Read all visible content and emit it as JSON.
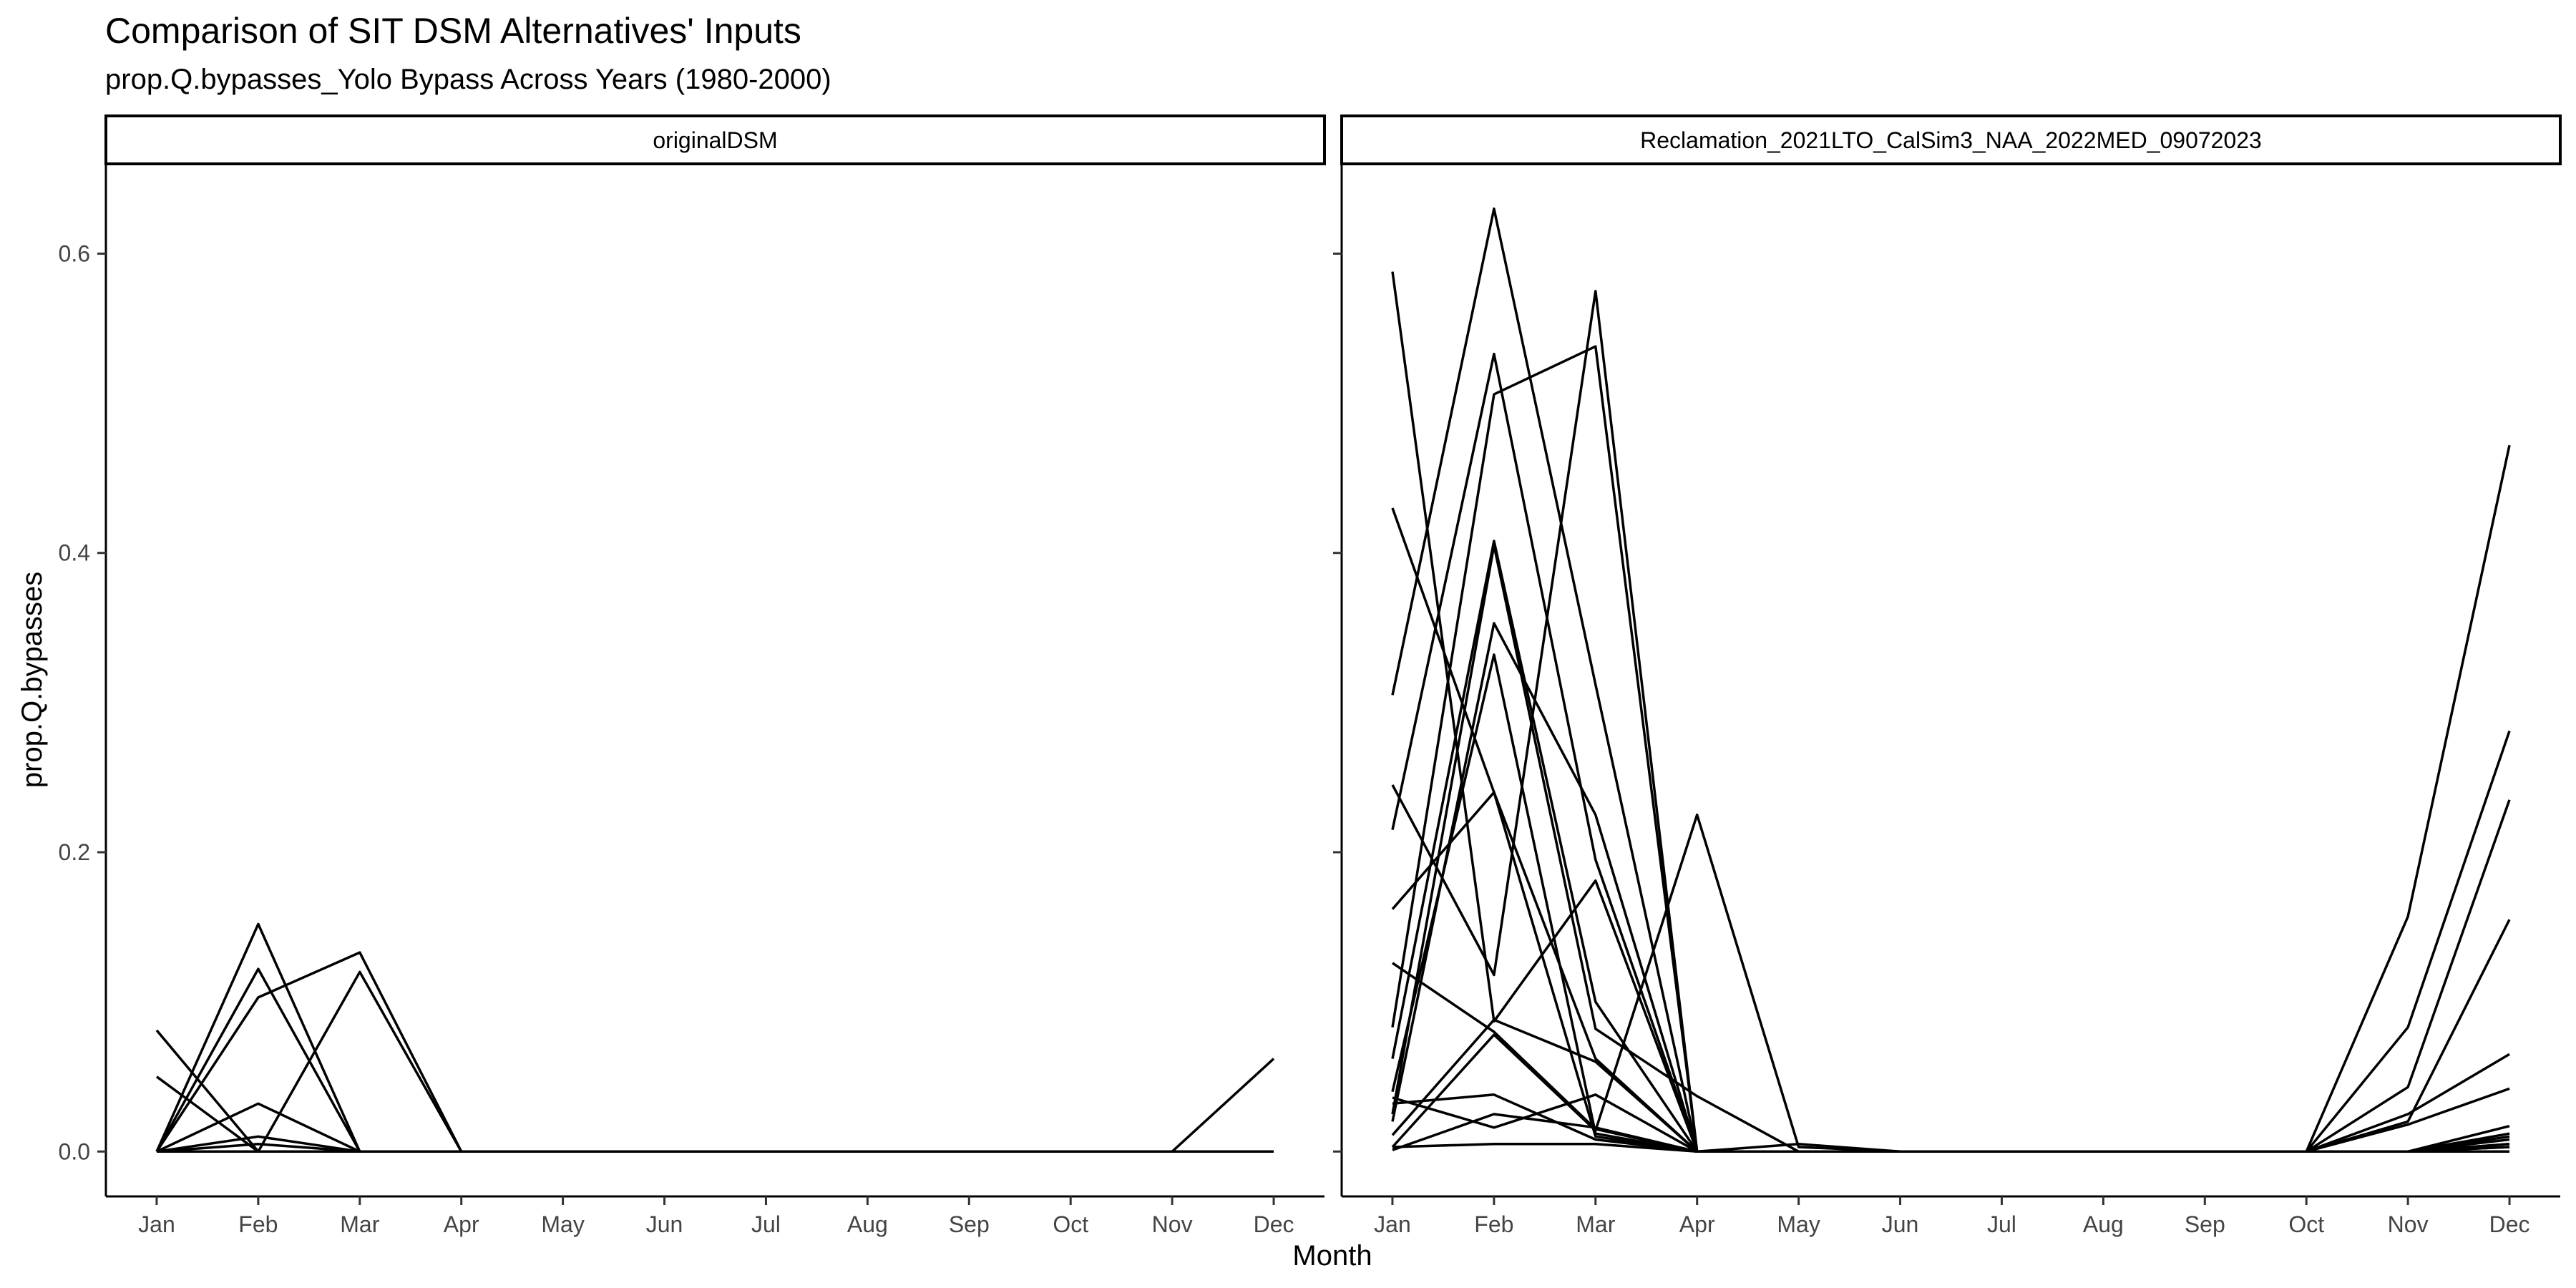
{
  "chart_data": {
    "type": "line",
    "title": "Comparison of SIT DSM Alternatives' Inputs",
    "subtitle": "prop.Q.bypasses_Yolo Bypass Across Years (1980-2000)",
    "xlabel": "Month",
    "ylabel": "prop.Q.bypasses",
    "x": [
      "Jan",
      "Feb",
      "Mar",
      "Apr",
      "May",
      "Jun",
      "Jul",
      "Aug",
      "Sep",
      "Oct",
      "Nov",
      "Dec"
    ],
    "ylim": [
      -0.03,
      0.66
    ],
    "yticks": [
      0.0,
      0.2,
      0.4,
      0.6
    ],
    "ytick_labels": [
      "0.0",
      "0.2",
      "0.4",
      "0.6"
    ],
    "grid": false,
    "legend": "none",
    "line_color": "#000000",
    "facets": [
      {
        "label": "originalDSM",
        "series": [
          {
            "values": [
              0.081,
              0,
              0,
              0,
              0,
              0,
              0,
              0,
              0,
              0,
              0,
              0
            ]
          },
          {
            "values": [
              0.05,
              0,
              0,
              0,
              0,
              0,
              0,
              0,
              0,
              0,
              0,
              0
            ]
          },
          {
            "values": [
              0,
              0.152,
              0,
              0,
              0,
              0,
              0,
              0,
              0,
              0,
              0,
              0
            ]
          },
          {
            "values": [
              0,
              0.122,
              0,
              0,
              0,
              0,
              0,
              0,
              0,
              0,
              0,
              0
            ]
          },
          {
            "values": [
              0,
              0.103,
              0.133,
              0,
              0,
              0,
              0,
              0,
              0,
              0,
              0,
              0
            ]
          },
          {
            "values": [
              0,
              0,
              0.12,
              0,
              0,
              0,
              0,
              0,
              0,
              0,
              0,
              0
            ]
          },
          {
            "values": [
              0,
              0.032,
              0,
              0,
              0,
              0,
              0,
              0,
              0,
              0,
              0,
              0
            ]
          },
          {
            "values": [
              0,
              0.01,
              0,
              0,
              0,
              0,
              0,
              0,
              0,
              0,
              0,
              0
            ]
          },
          {
            "values": [
              0,
              0.005,
              0,
              0,
              0,
              0,
              0,
              0,
              0,
              0,
              0,
              0
            ]
          },
          {
            "values": [
              0,
              0,
              0,
              0,
              0,
              0,
              0,
              0,
              0,
              0,
              0,
              0.062
            ]
          }
        ]
      },
      {
        "label": "Reclamation_2021LTO_CalSim3_NAA_2022MED_09072023",
        "series": [
          {
            "values": [
              0.588,
              0.087,
              0.181,
              0,
              0,
              0,
              0,
              0,
              0,
              0,
              0,
              0
            ]
          },
          {
            "values": [
              0.43,
              0.24,
              0.062,
              0,
              0,
              0,
              0,
              0,
              0,
              0,
              0,
              0
            ]
          },
          {
            "values": [
              0.305,
              0.63,
              0.312,
              0,
              0,
              0,
              0,
              0,
              0,
              0,
              0.157,
              0.472
            ]
          },
          {
            "values": [
              0.245,
              0.118,
              0.575,
              0,
              0,
              0,
              0,
              0,
              0,
              0,
              0.083,
              0.281
            ]
          },
          {
            "values": [
              0.215,
              0.533,
              0.195,
              0,
              0,
              0,
              0,
              0,
              0,
              0,
              0.043,
              0.235
            ]
          },
          {
            "values": [
              0.162,
              0.24,
              0.01,
              0,
              0,
              0,
              0,
              0,
              0,
              0,
              0.02,
              0.155
            ]
          },
          {
            "values": [
              0.126,
              0.08,
              0.015,
              0,
              0,
              0,
              0,
              0,
              0,
              0,
              0.025,
              0.065
            ]
          },
          {
            "values": [
              0.083,
              0.506,
              0.538,
              0,
              0,
              0,
              0,
              0,
              0,
              0,
              0.018,
              0.042
            ]
          },
          {
            "values": [
              0.062,
              0.408,
              0.1,
              0,
              0,
              0,
              0,
              0,
              0,
              0,
              0,
              0.017
            ]
          },
          {
            "values": [
              0.025,
              0.405,
              0.082,
              0.037,
              0,
              0,
              0,
              0,
              0,
              0,
              0,
              0.012
            ]
          },
          {
            "values": [
              0.02,
              0.353,
              0.225,
              0,
              0,
              0,
              0,
              0,
              0,
              0,
              0,
              0.008
            ]
          },
          {
            "values": [
              0.04,
              0.332,
              0.012,
              0,
              0,
              0,
              0,
              0,
              0,
              0,
              0,
              0.005
            ]
          },
          {
            "values": [
              0.036,
              0.016,
              0.038,
              0,
              0.005,
              0,
              0,
              0,
              0,
              0,
              0,
              0.003
            ]
          },
          {
            "values": [
              0.011,
              0.088,
              0.06,
              0,
              0,
              0,
              0,
              0,
              0,
              0,
              0,
              0
            ]
          },
          {
            "values": [
              0.003,
              0.078,
              0.014,
              0.225,
              0.003,
              0,
              0,
              0,
              0,
              0,
              0,
              0
            ]
          },
          {
            "values": [
              0.003,
              0.005,
              0.005,
              0,
              0,
              0,
              0,
              0,
              0,
              0,
              0,
              0.003
            ]
          },
          {
            "values": [
              0.001,
              0.025,
              0.016,
              0,
              0,
              0,
              0,
              0,
              0,
              0,
              0,
              0.005
            ]
          },
          {
            "values": [
              0.032,
              0.038,
              0.008,
              0,
              0,
              0,
              0,
              0,
              0,
              0,
              0,
              0.01
            ]
          }
        ]
      }
    ]
  }
}
